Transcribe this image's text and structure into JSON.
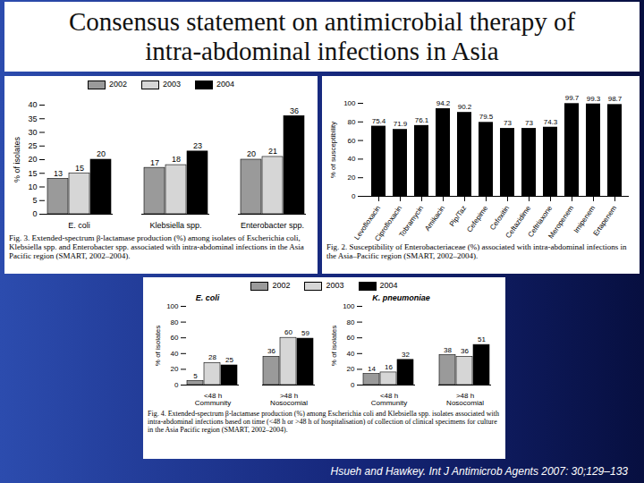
{
  "title": "Consensus statement on antimicrobial therapy of\nintra-abdominal infections in Asia",
  "source": "Hsueh and Hawkey. Int J Antimicrob Agents 2007: 30;129–133",
  "chart_data": [
    {
      "type": "bar",
      "caption": "Fig. 3. Extended-spectrum β-lactamase production (%) among isolates of Escherichia coli, Klebsiella spp. and Enterobacter spp. associated with intra-abdominal infections in the Asia Pacific region (SMART, 2002–2004).",
      "y_label": "% of isolates",
      "categories": [
        "E. coli",
        "Klebsiella spp.",
        "Enterobacter spp."
      ],
      "series": [
        {
          "name": "2002",
          "color": "#9a9a9a",
          "values": [
            13,
            17,
            20
          ]
        },
        {
          "name": "2003",
          "color": "#d6d6d6",
          "values": [
            15,
            18,
            21
          ]
        },
        {
          "name": "2004",
          "color": "#000000",
          "values": [
            20,
            23,
            36
          ]
        }
      ],
      "ylim": [
        0,
        40
      ],
      "yticks": [
        0,
        5,
        10,
        15,
        20,
        25,
        30,
        35,
        40
      ],
      "grid": false,
      "legend": "top",
      "data_labels": true
    },
    {
      "type": "bar",
      "caption": "Fig. 2. Susceptibility of Enterobacteriaceae (%) associated with intra-abdominal infections in the Asia–Pacific region (SMART, 2002–2004).",
      "y_label": "% of susceptibility",
      "categories": [
        "Levofloxacin",
        "Ciprofloxacin",
        "Tobramycin",
        "Amikacin",
        "Pip/Taz",
        "Cefepime",
        "Cefoxitin",
        "Ceftazidime",
        "Ceftriaxone",
        "Meropenem",
        "Imipenem",
        "Ertapenem"
      ],
      "values": [
        75.4,
        71.9,
        76.1,
        94.2,
        90.2,
        79.5,
        73,
        73,
        74.3,
        99.7,
        99.3,
        98.7
      ],
      "color": "#000000",
      "ylim": [
        0,
        100
      ],
      "yticks": [
        0,
        20,
        40,
        60,
        80,
        100
      ],
      "grid": false,
      "data_labels": true
    },
    {
      "type": "bar",
      "title": "E. coli",
      "caption": "Fig. 4. Extended-spectrum β-lactamase production (%) among Escherichia coli and Klebsiella spp. isolates associated with intra-abdominal infections based on time (<48 h or >48 h of hospitalisation) of collection of clinical specimens for culture in the Asia Pacific region (SMART, 2002–2004).",
      "y_label": "% of isolates",
      "categories": [
        "<48 h",
        ">48 h"
      ],
      "category_groups": [
        "Community",
        "Nosocomial"
      ],
      "series": [
        {
          "name": "2002",
          "color": "#9a9a9a",
          "values": [
            5,
            36
          ]
        },
        {
          "name": "2003",
          "color": "#d6d6d6",
          "values": [
            28,
            60
          ]
        },
        {
          "name": "2004",
          "color": "#000000",
          "values": [
            25,
            59
          ]
        }
      ],
      "ylim": [
        0,
        100
      ],
      "yticks": [
        0,
        20,
        40,
        60,
        80,
        100
      ],
      "grid": false,
      "legend": "top",
      "data_labels": true
    },
    {
      "type": "bar",
      "title": "K. pneumoniae",
      "y_label": "% of isolates",
      "categories": [
        "<48 h",
        ">48 h"
      ],
      "category_groups": [
        "Community",
        "Nosocomial"
      ],
      "series": [
        {
          "name": "2002",
          "color": "#9a9a9a",
          "values": [
            14,
            38
          ]
        },
        {
          "name": "2003",
          "color": "#d6d6d6",
          "values": [
            16,
            36
          ]
        },
        {
          "name": "2004",
          "color": "#000000",
          "values": [
            32,
            51
          ]
        }
      ],
      "ylim": [
        0,
        100
      ],
      "yticks": [
        0,
        20,
        40,
        60,
        80,
        100
      ],
      "grid": false,
      "data_labels": true
    }
  ]
}
